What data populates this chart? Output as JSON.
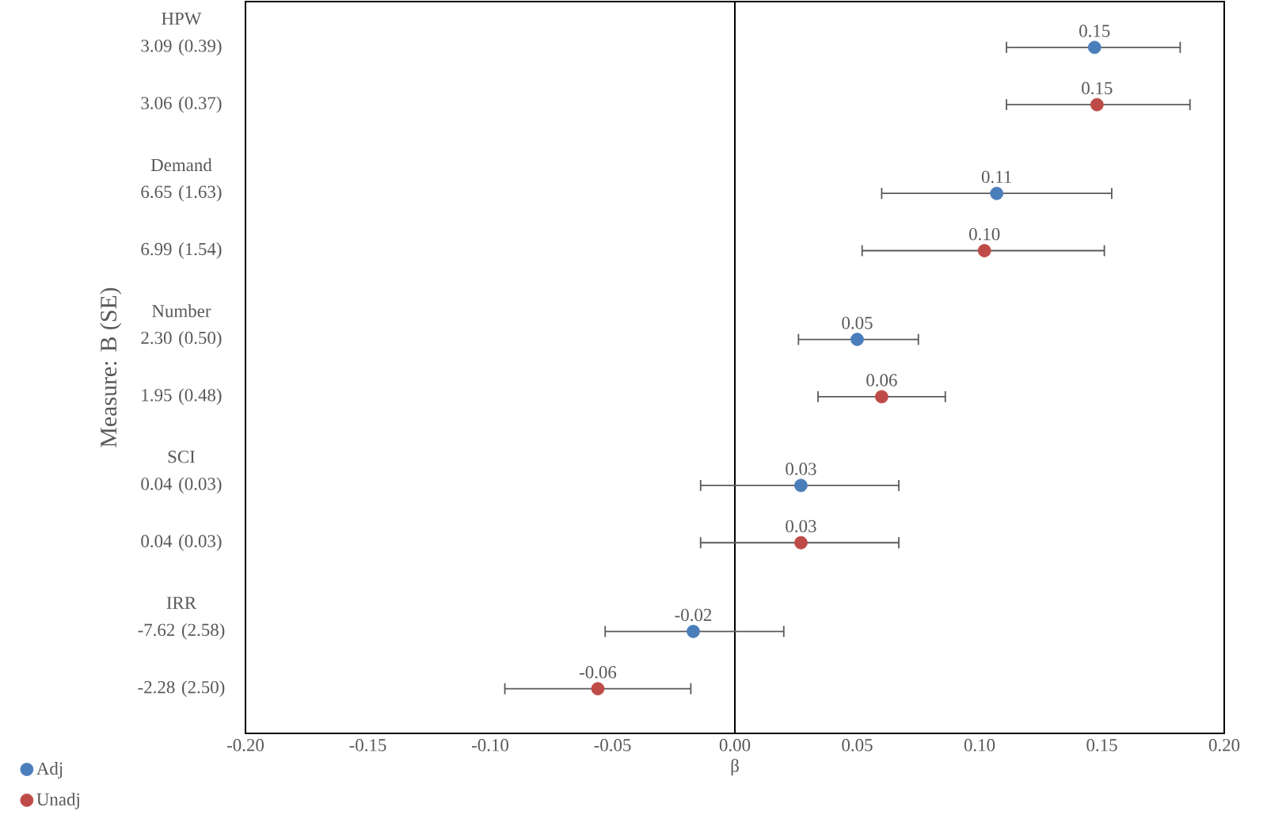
{
  "chart_data": {
    "type": "scatter",
    "orientation": "horizontal",
    "xlabel": "β",
    "ylabel": "Measure: B (SE)",
    "categories": [
      "HPW",
      "3.09 (0.39)",
      "3.06 (0.37)",
      "Demand",
      "6.65 (1.63)",
      "6.99 (1.54)",
      "Number",
      "2.30 (0.50)",
      "1.95 (0.48)",
      "SCI",
      "0.04 (0.03)",
      "0.04 (0.03)",
      "IRR",
      "-7.62 (2.58)",
      "-2.28 (2.50)"
    ],
    "xlim": [
      -0.2,
      0.2
    ],
    "xticks": [
      {
        "value": -0.2,
        "label": "-0.20"
      },
      {
        "value": -0.15,
        "label": "-0.15"
      },
      {
        "value": -0.1,
        "label": "-0.10"
      },
      {
        "value": -0.05,
        "label": "-0.05"
      },
      {
        "value": 0,
        "label": "0.00"
      },
      {
        "value": 0.05,
        "label": "0.05"
      },
      {
        "value": 0.1,
        "label": "0.10"
      },
      {
        "value": 0.15,
        "label": "0.15"
      },
      {
        "value": 0.2,
        "label": "0.20"
      }
    ],
    "marker": "circle",
    "legend": "bottom left",
    "ref_lines": [
      {
        "axis": "x",
        "value": 0,
        "color": "#000000"
      }
    ],
    "series": [
      {
        "name": "Adj",
        "color": "#4a7ebb",
        "values": [
          null,
          0.147,
          null,
          null,
          0.107,
          null,
          null,
          0.05,
          null,
          null,
          0.027,
          null,
          null,
          -0.017,
          null
        ],
        "errors": [
          null,
          [
            0.111,
            0.182
          ],
          null,
          null,
          [
            0.06,
            0.154
          ],
          null,
          null,
          [
            0.026,
            0.075
          ],
          null,
          null,
          [
            -0.014,
            0.067
          ],
          null,
          null,
          [
            -0.053,
            0.02
          ],
          null
        ],
        "value_labels": [
          null,
          "0.15",
          null,
          null,
          "0.11",
          null,
          null,
          "0.05",
          null,
          null,
          "0.03",
          null,
          null,
          "-0.02",
          null
        ]
      },
      {
        "name": "Unadj",
        "color": "#be4b48",
        "values": [
          null,
          null,
          0.148,
          null,
          null,
          0.102,
          null,
          null,
          0.06,
          null,
          null,
          0.027,
          null,
          null,
          -0.056
        ],
        "errors": [
          null,
          null,
          [
            0.111,
            0.186
          ],
          null,
          null,
          [
            0.052,
            0.151
          ],
          null,
          null,
          [
            0.034,
            0.086
          ],
          null,
          null,
          [
            -0.014,
            0.067
          ],
          null,
          null,
          [
            -0.094,
            -0.018
          ]
        ],
        "value_labels": [
          null,
          null,
          "0.15",
          null,
          null,
          "0.10",
          null,
          null,
          "0.06",
          null,
          null,
          "0.03",
          null,
          null,
          "-0.06"
        ]
      }
    ]
  }
}
